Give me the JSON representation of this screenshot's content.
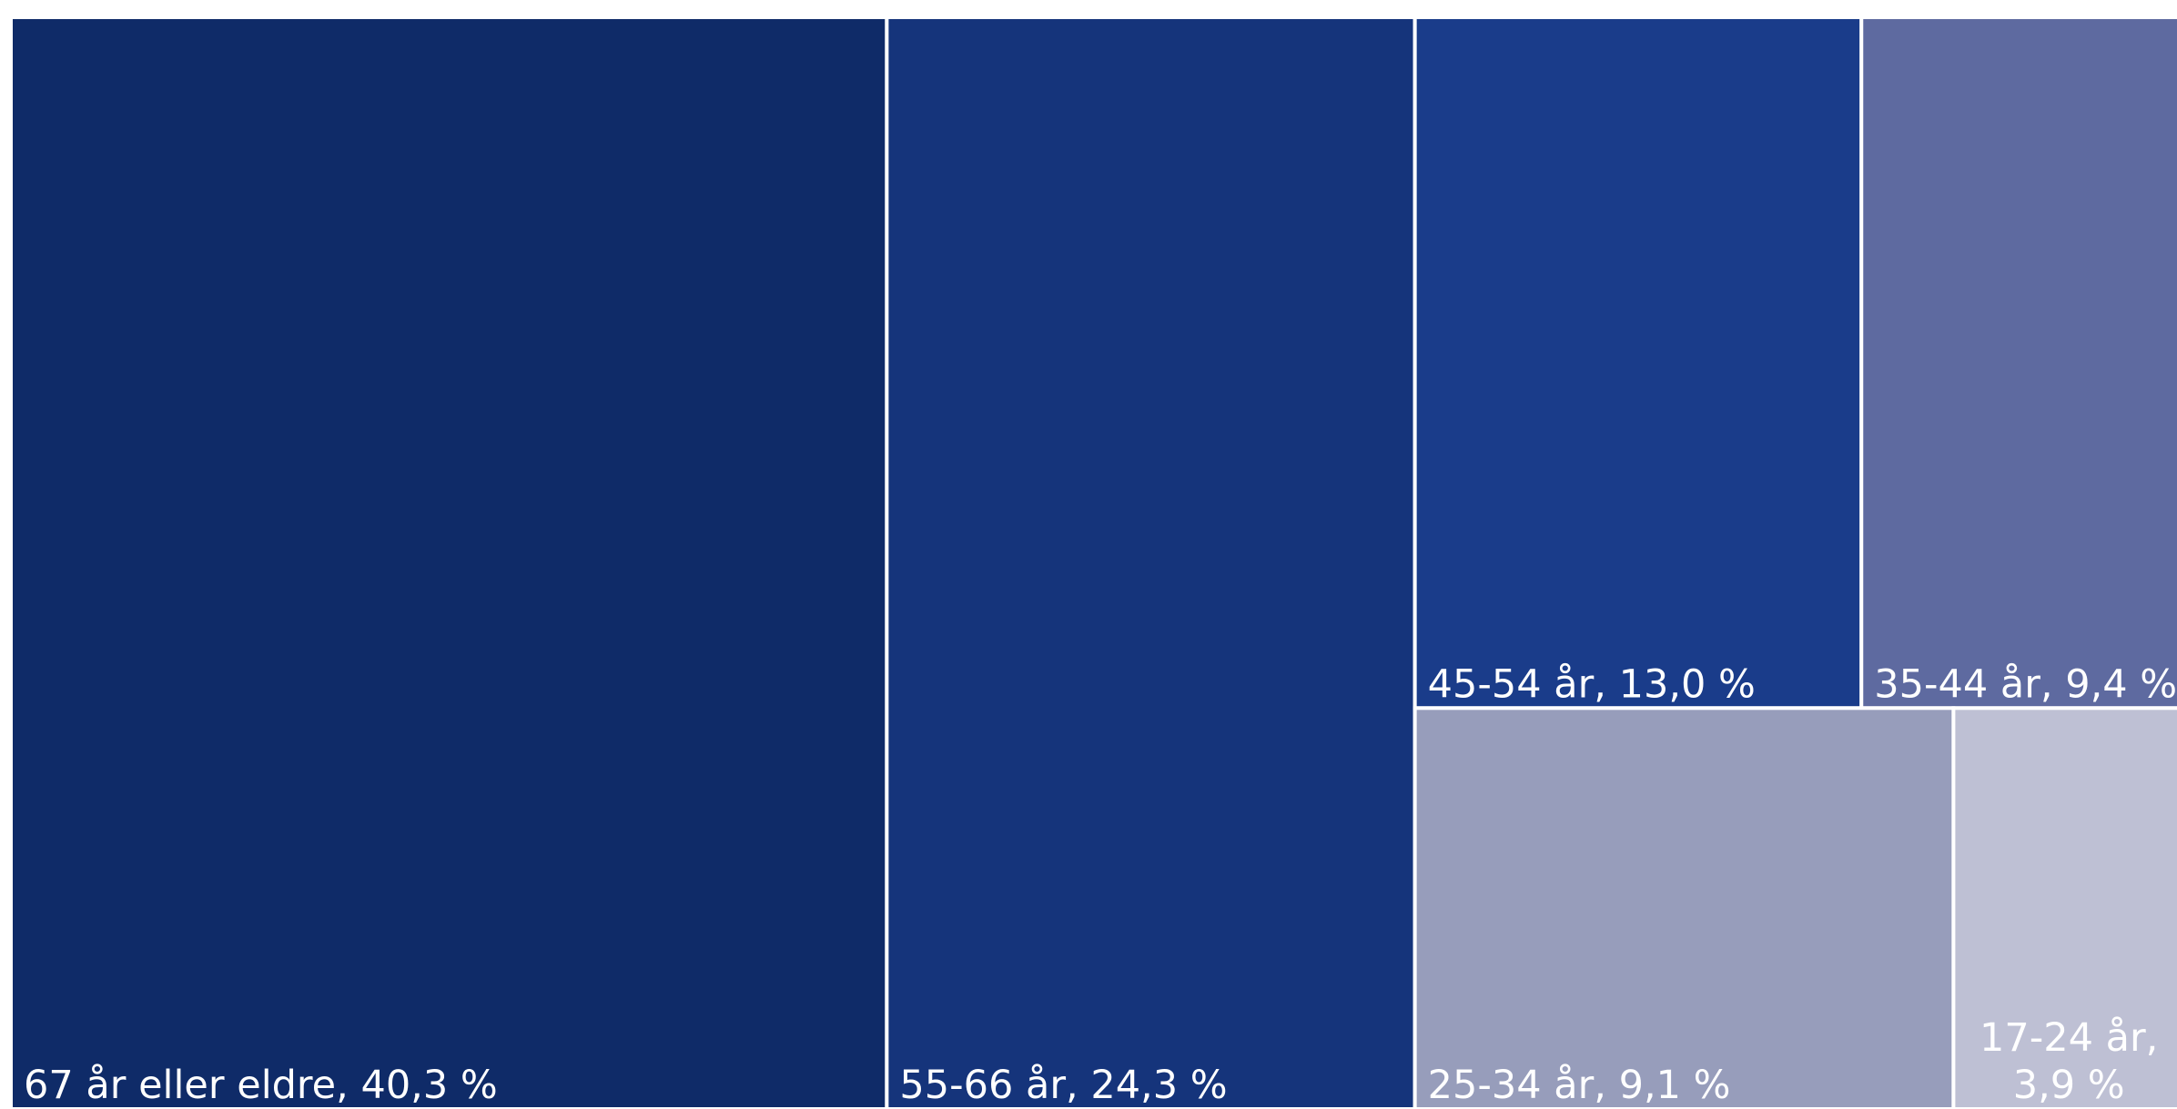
{
  "chart_data": {
    "type": "treemap",
    "title": "",
    "items": [
      {
        "label_lines": [
          "67 år eller eldre, 40,3 %"
        ],
        "value": 40.3,
        "color": "#0f2b68"
      },
      {
        "label_lines": [
          "55-66 år, 24,3 %"
        ],
        "value": 24.3,
        "color": "#15347b"
      },
      {
        "label_lines": [
          "45-54 år, 13,0 %"
        ],
        "value": 13.0,
        "color": "#1a3c8a"
      },
      {
        "label_lines": [
          "35-44 år, 9,4 %"
        ],
        "value": 9.4,
        "color": "#5e6aa0"
      },
      {
        "label_lines": [
          "25-34 år, 9,1 %"
        ],
        "value": 9.1,
        "color": "#979dbb"
      },
      {
        "label_lines": [
          "17-24 år,",
          "3,9 %"
        ],
        "value": 3.9,
        "color": "#bec0d4"
      }
    ]
  }
}
